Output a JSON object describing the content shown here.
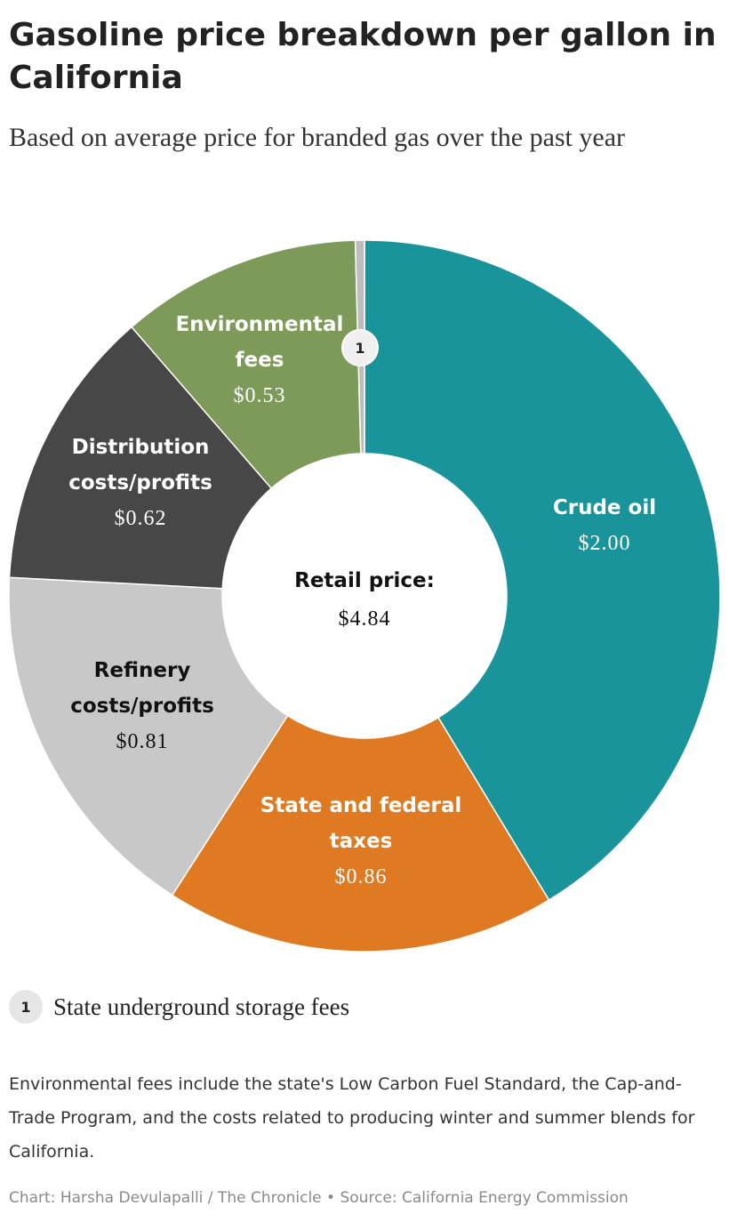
{
  "title": "Gasoline price breakdown per gallon in California",
  "subtitle": "Based on average price for branded gas over the past year",
  "chart_data": {
    "type": "pie",
    "center_label": "Retail price:",
    "center_value": "$4.84",
    "total": 4.84,
    "slices": [
      {
        "key": "crude",
        "label_lines": [
          "Crude oil"
        ],
        "value": 2.0,
        "value_text": "$2.00",
        "color": "#18949a",
        "text_color": "#ffffff"
      },
      {
        "key": "taxes",
        "label_lines": [
          "State and federal",
          "taxes"
        ],
        "value": 0.86,
        "value_text": "$0.86",
        "color": "#e07a22",
        "text_color": "#ffffff"
      },
      {
        "key": "refinery",
        "label_lines": [
          "Refinery",
          "costs/profits"
        ],
        "value": 0.81,
        "value_text": "$0.81",
        "color": "#c8c8c8",
        "text_color": "#111111"
      },
      {
        "key": "distribution",
        "label_lines": [
          "Distribution",
          "costs/profits"
        ],
        "value": 0.62,
        "value_text": "$0.62",
        "color": "#474747",
        "text_color": "#ffffff"
      },
      {
        "key": "environmental",
        "label_lines": [
          "Environmental",
          "fees"
        ],
        "value": 0.53,
        "value_text": "$0.53",
        "color": "#7e9a59",
        "text_color": "#ffffff"
      },
      {
        "key": "storage",
        "label_lines": [],
        "value": 0.02,
        "value_text": "",
        "marker": "1",
        "color": "#bdbdbd",
        "text_color": "#222222"
      }
    ]
  },
  "legend": {
    "marker": "1",
    "text": "State underground storage fees"
  },
  "note": "Environmental fees include the state's Low Carbon Fuel Standard, the Cap-and-Trade Program, and the costs related to producing winter and summer blends for California.",
  "credit": "Chart: Harsha Devulapalli / The Chronicle • Source: California Energy Commission"
}
